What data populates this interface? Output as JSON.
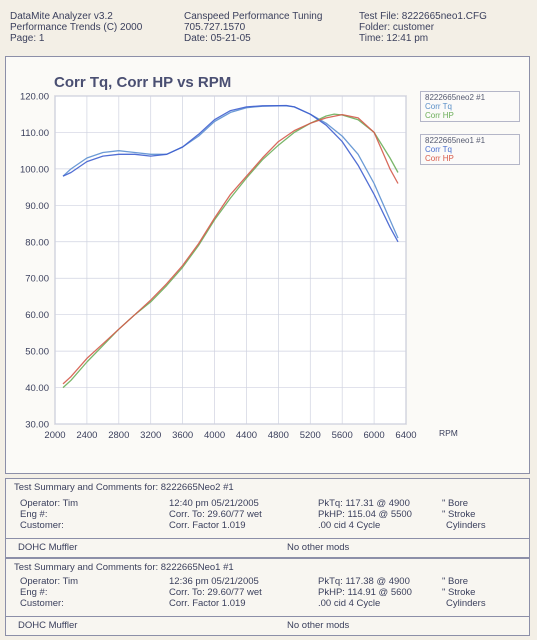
{
  "header": {
    "left": [
      "DataMite Analyzer v3.2",
      "Performance Trends (C) 2000",
      "Page:  1"
    ],
    "mid": [
      "Canspeed Performance Tuning",
      "705.727.1570",
      "Date:  05-21-05"
    ],
    "right": [
      "Test File:  8222665neo1.CFG",
      "Folder:  customer",
      "Time:  12:41 pm"
    ]
  },
  "legend": [
    {
      "title": "8222665neo2   #1",
      "items": [
        "Corr Tq",
        "Corr HP"
      ],
      "item_colors": [
        "#5a8fc8",
        "#6cae5a"
      ]
    },
    {
      "title": "8222665neo1   #1",
      "items": [
        "Corr Tq",
        "Corr HP"
      ],
      "item_colors": [
        "#4a6fd0",
        "#d85a4a"
      ]
    }
  ],
  "chart_data": {
    "type": "line",
    "title": "Corr Tq, Corr HP vs RPM",
    "xlabel": "RPM",
    "ylabel": "",
    "xlim": [
      2000,
      6400
    ],
    "ylim": [
      30,
      120
    ],
    "xticks": [
      "2000",
      "2400",
      "2800",
      "3200",
      "3600",
      "4000",
      "4400",
      "4800",
      "5200",
      "5600",
      "6000",
      "6400"
    ],
    "yticks": [
      "30.00",
      "40.00",
      "50.00",
      "60.00",
      "70.00",
      "80.00",
      "90.00",
      "100.00",
      "110.00",
      "120.00"
    ],
    "grid": true,
    "legend_position": "right",
    "series": [
      {
        "name": "8222665neo2 Corr Tq",
        "color": "#5b8fd0",
        "x": [
          2100,
          2200,
          2400,
          2600,
          2800,
          3000,
          3200,
          3400,
          3600,
          3800,
          4000,
          4200,
          4400,
          4600,
          4800,
          4900,
          5000,
          5200,
          5400,
          5600,
          5800,
          6000,
          6200,
          6300
        ],
        "y": [
          98,
          100,
          103,
          104.5,
          105,
          104.5,
          104,
          104,
          106,
          109,
          113,
          115.5,
          116.8,
          117.2,
          117.3,
          117.31,
          117,
          115,
          112.5,
          109,
          104,
          96,
          86,
          81
        ]
      },
      {
        "name": "8222665neo2 Corr HP",
        "color": "#6cae5a",
        "x": [
          2100,
          2200,
          2400,
          2600,
          2800,
          3000,
          3200,
          3400,
          3600,
          3800,
          4000,
          4200,
          4400,
          4600,
          4800,
          5000,
          5200,
          5400,
          5500,
          5600,
          5800,
          6000,
          6200,
          6300
        ],
        "y": [
          40,
          42,
          47,
          51.5,
          56,
          60,
          63.5,
          68,
          73,
          79,
          86,
          92,
          97.5,
          102.5,
          106.5,
          110,
          112.5,
          114.5,
          115.04,
          114.8,
          113.5,
          110,
          103,
          99
        ]
      },
      {
        "name": "8222665neo1 Corr Tq",
        "color": "#3f5fcf",
        "x": [
          2100,
          2200,
          2400,
          2600,
          2800,
          3000,
          3200,
          3400,
          3600,
          3800,
          4000,
          4200,
          4400,
          4600,
          4800,
          4900,
          5000,
          5200,
          5400,
          5600,
          5800,
          6000,
          6200,
          6300
        ],
        "y": [
          98,
          99,
          102,
          103.5,
          104,
          104,
          103.5,
          104,
          106,
          109.5,
          113.5,
          116,
          117,
          117.3,
          117.35,
          117.38,
          117,
          115,
          112,
          107.5,
          101,
          93,
          84,
          80
        ]
      },
      {
        "name": "8222665neo1 Corr HP",
        "color": "#d45a4a",
        "x": [
          2100,
          2200,
          2400,
          2600,
          2800,
          3000,
          3200,
          3400,
          3600,
          3800,
          4000,
          4200,
          4400,
          4600,
          4800,
          5000,
          5200,
          5400,
          5600,
          5800,
          6000,
          6200,
          6300
        ],
        "y": [
          41,
          43,
          48,
          52,
          56,
          60,
          64,
          68.5,
          73.5,
          79.5,
          86.5,
          93,
          98,
          103,
          107.5,
          110.5,
          112.5,
          114,
          114.91,
          114,
          110,
          100,
          96
        ]
      }
    ]
  },
  "summaries": [
    {
      "title": "Test Summary and Comments for:   8222665Neo2   #1",
      "operator": "Operator: Tim",
      "eng": "Eng #:",
      "customer": "Customer:",
      "time": "12:40 pm 05/21/2005",
      "corr_to": "Corr. To: 29.60/77 wet",
      "corr_factor": "Corr. Factor 1.019",
      "pktq": "PkTq: 117.31 @  4900",
      "pkhp": "PkHP: 115.04 @  5500",
      "cid": ".00 cid  4 Cycle",
      "bore": "\" Bore",
      "stroke": "\" Stroke",
      "cylinders": "Cylinders",
      "foot_left": "DOHC Muffler",
      "foot_mid": "No other mods"
    },
    {
      "title": "Test Summary and Comments for:   8222665Neo1   #1",
      "operator": "Operator: Tim",
      "eng": "Eng #:",
      "customer": "Customer:",
      "time": "12:36 pm 05/21/2005",
      "corr_to": "Corr. To: 29.60/77 wet",
      "corr_factor": "Corr. Factor 1.019",
      "pktq": "PkTq: 117.38 @  4900",
      "pkhp": "PkHP: 114.91 @  5600",
      "cid": ".00 cid  4 Cycle",
      "bore": "\" Bore",
      "stroke": "\" Stroke",
      "cylinders": "Cylinders",
      "foot_left": "DOHC Muffler",
      "foot_mid": "No other mods"
    }
  ]
}
